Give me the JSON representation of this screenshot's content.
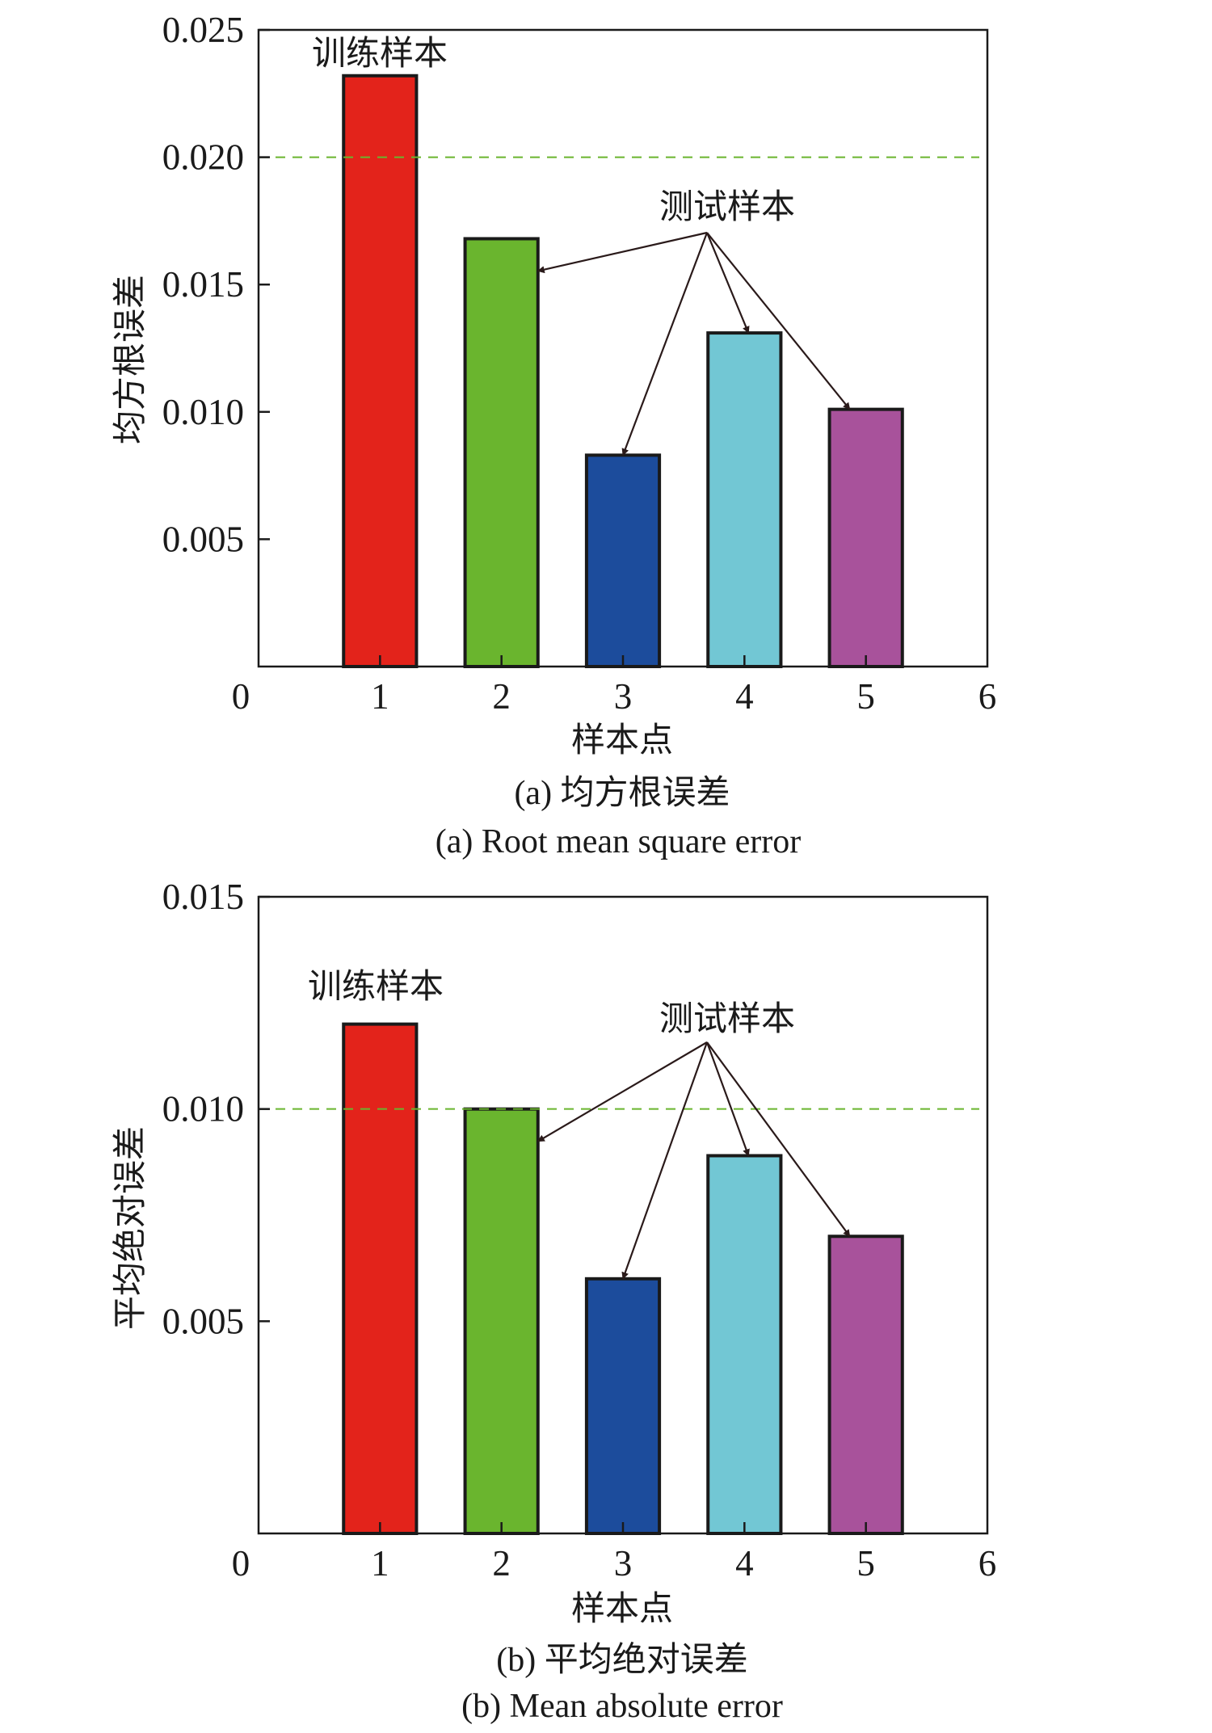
{
  "chart_data": [
    {
      "type": "bar",
      "x": [
        1,
        2,
        3,
        4,
        5
      ],
      "values": [
        0.0232,
        0.0168,
        0.0083,
        0.0131,
        0.0101
      ],
      "colors": [
        "#e3231b",
        "#6ab52e",
        "#1c4c9c",
        "#72c7d4",
        "#a8529b"
      ],
      "xlim": [
        0,
        6
      ],
      "ylim": [
        0,
        0.025
      ],
      "x_ticks": [
        0,
        1,
        2,
        3,
        4,
        5,
        6
      ],
      "x_tick_labels": [
        "0",
        "1",
        "2",
        "3",
        "4",
        "5",
        "6"
      ],
      "y_ticks": [
        0.005,
        0.01,
        0.015,
        0.02,
        0.025
      ],
      "y_tick_labels": [
        "0.005",
        "0.010",
        "0.015",
        "0.020",
        "0.025"
      ],
      "reference_line": {
        "y": 0.02,
        "color": "#6ab52e",
        "style": "dashed"
      },
      "xlabel": "样本点",
      "ylabel": "均方根误差",
      "annotations": {
        "train": "训练样本",
        "test": "测试样本"
      },
      "caption_cn": "(a) 均方根误差",
      "caption_en": "(a) Root mean square error",
      "grid": false
    },
    {
      "type": "bar",
      "x": [
        1,
        2,
        3,
        4,
        5
      ],
      "values": [
        0.012,
        0.01,
        0.006,
        0.0089,
        0.007
      ],
      "colors": [
        "#e3231b",
        "#6ab52e",
        "#1c4c9c",
        "#72c7d4",
        "#a8529b"
      ],
      "xlim": [
        0,
        6
      ],
      "ylim": [
        0,
        0.015
      ],
      "x_ticks": [
        0,
        1,
        2,
        3,
        4,
        5,
        6
      ],
      "x_tick_labels": [
        "0",
        "1",
        "2",
        "3",
        "4",
        "5",
        "6"
      ],
      "y_ticks": [
        0.005,
        0.01,
        0.015
      ],
      "y_tick_labels": [
        "0.005",
        "0.010",
        "0.015"
      ],
      "reference_line": {
        "y": 0.01,
        "color": "#6ab52e",
        "style": "dashed"
      },
      "xlabel": "样本点",
      "ylabel": "平均绝对误差",
      "annotations": {
        "train": "训练样本",
        "test": "测试样本"
      },
      "caption_cn": "(b) 平均绝对误差",
      "caption_en": "(b) Mean absolute error",
      "grid": false
    }
  ]
}
